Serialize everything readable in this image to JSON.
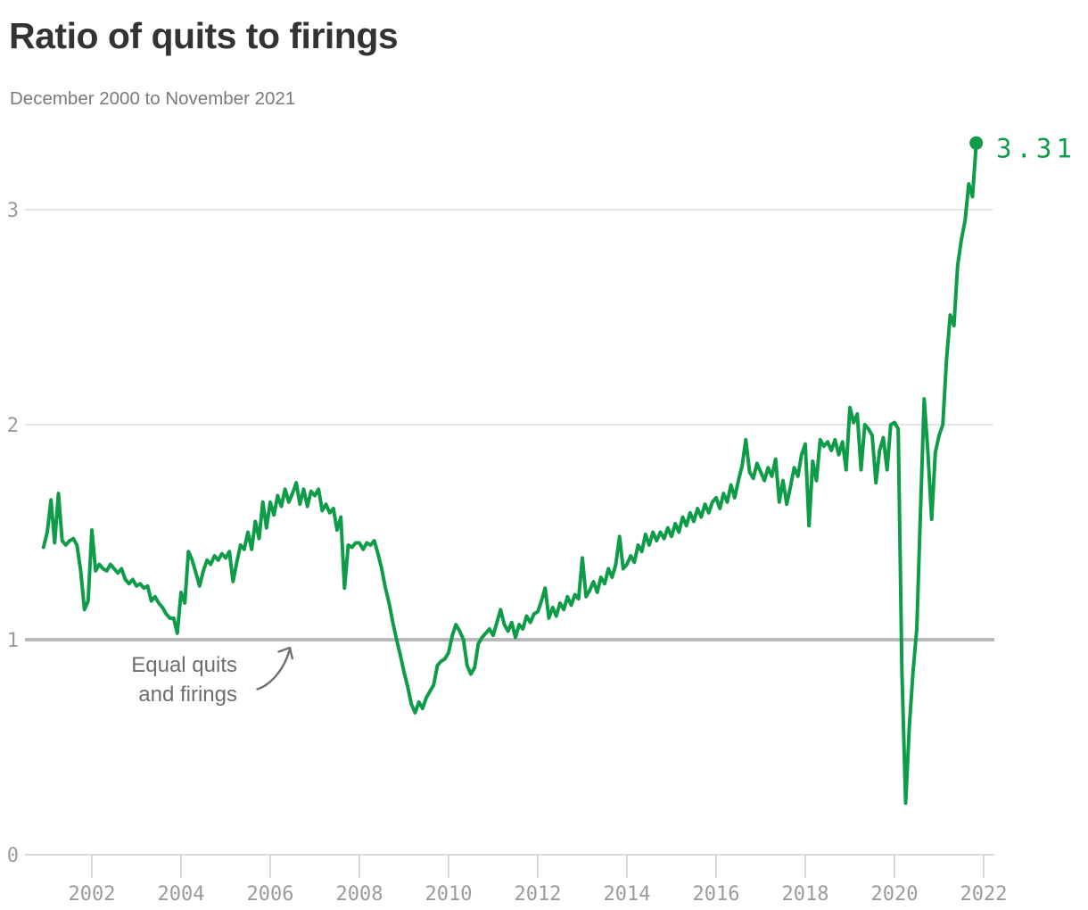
{
  "header": {
    "title": "Ratio of quits to firings",
    "subtitle": "December 2000 to November 2021"
  },
  "annotation": {
    "text": "Equal quits\nand firings"
  },
  "chart_data": {
    "type": "line",
    "title": "Ratio of quits to firings",
    "subtitle": "December 2000 to November 2021",
    "series_name": "Quits-to-firings ratio",
    "frequency": "monthly",
    "start": "2000-12",
    "end": "2021-11",
    "end_label": "3.31",
    "last_value": 3.31,
    "xlabel": "",
    "ylabel": "",
    "grid": "horizontal",
    "legend": "none",
    "x_tick_labels": [
      "2002",
      "2004",
      "2006",
      "2008",
      "2010",
      "2012",
      "2014",
      "2016",
      "2018",
      "2020",
      "2022"
    ],
    "y_ticks": [
      0,
      1,
      2,
      3
    ],
    "y_tick_labels": [
      "0",
      "1",
      "2",
      "3"
    ],
    "ylim": [
      0,
      3.45
    ],
    "xlim_years": [
      2000.85,
      2022.35
    ],
    "reference_line": {
      "value": 1,
      "label": "Equal quits and firings"
    },
    "values": [
      1.43,
      1.5,
      1.65,
      1.45,
      1.68,
      1.46,
      1.44,
      1.46,
      1.47,
      1.44,
      1.32,
      1.14,
      1.18,
      1.51,
      1.32,
      1.35,
      1.33,
      1.32,
      1.35,
      1.33,
      1.31,
      1.33,
      1.28,
      1.26,
      1.28,
      1.25,
      1.26,
      1.24,
      1.25,
      1.18,
      1.2,
      1.17,
      1.15,
      1.12,
      1.1,
      1.1,
      1.03,
      1.22,
      1.17,
      1.41,
      1.37,
      1.31,
      1.25,
      1.32,
      1.37,
      1.35,
      1.39,
      1.37,
      1.4,
      1.38,
      1.41,
      1.27,
      1.36,
      1.44,
      1.42,
      1.5,
      1.42,
      1.55,
      1.47,
      1.64,
      1.52,
      1.64,
      1.58,
      1.67,
      1.62,
      1.7,
      1.64,
      1.68,
      1.73,
      1.63,
      1.7,
      1.62,
      1.69,
      1.67,
      1.7,
      1.6,
      1.63,
      1.59,
      1.61,
      1.51,
      1.57,
      1.24,
      1.44,
      1.43,
      1.45,
      1.45,
      1.42,
      1.45,
      1.44,
      1.46,
      1.4,
      1.33,
      1.24,
      1.17,
      1.08,
      1.0,
      0.93,
      0.85,
      0.78,
      0.7,
      0.66,
      0.71,
      0.68,
      0.73,
      0.76,
      0.79,
      0.88,
      0.9,
      0.91,
      0.94,
      1.02,
      1.07,
      1.04,
      1.0,
      0.88,
      0.84,
      0.87,
      0.98,
      1.01,
      1.03,
      1.05,
      1.02,
      1.08,
      1.14,
      1.07,
      1.04,
      1.08,
      1.01,
      1.07,
      1.05,
      1.11,
      1.08,
      1.12,
      1.13,
      1.18,
      1.24,
      1.1,
      1.15,
      1.11,
      1.17,
      1.14,
      1.2,
      1.16,
      1.21,
      1.19,
      1.38,
      1.2,
      1.23,
      1.27,
      1.22,
      1.29,
      1.26,
      1.33,
      1.29,
      1.35,
      1.48,
      1.33,
      1.35,
      1.39,
      1.36,
      1.44,
      1.41,
      1.49,
      1.44,
      1.5,
      1.46,
      1.5,
      1.47,
      1.52,
      1.48,
      1.54,
      1.5,
      1.57,
      1.53,
      1.59,
      1.55,
      1.61,
      1.57,
      1.63,
      1.59,
      1.64,
      1.66,
      1.61,
      1.68,
      1.64,
      1.72,
      1.66,
      1.74,
      1.81,
      1.93,
      1.78,
      1.75,
      1.82,
      1.78,
      1.74,
      1.8,
      1.76,
      1.84,
      1.64,
      1.74,
      1.63,
      1.71,
      1.8,
      1.76,
      1.86,
      1.91,
      1.53,
      1.83,
      1.74,
      1.93,
      1.9,
      1.92,
      1.88,
      1.93,
      1.86,
      1.92,
      1.79,
      2.08,
      2.01,
      2.05,
      1.79,
      2.0,
      1.98,
      1.95,
      1.73,
      1.88,
      1.94,
      1.79,
      2.0,
      2.01,
      1.98,
      0.86,
      0.24,
      0.6,
      0.85,
      1.05,
      1.6,
      2.12,
      1.87,
      1.56,
      1.87,
      1.95,
      2.0,
      2.3,
      2.51,
      2.46,
      2.74,
      2.86,
      2.95,
      3.12,
      3.06,
      3.31
    ],
    "colors": {
      "line": "#0f9c48",
      "axis_text": "#9b9b9b",
      "grid": "#e4e4e4",
      "reference": "#b9b9b9",
      "baseline": "#d9d9d9",
      "title": "#333333",
      "subtitle": "#7a7a7a",
      "annotation": "#6e6e6e",
      "arrow": "#6f6f6f"
    }
  }
}
